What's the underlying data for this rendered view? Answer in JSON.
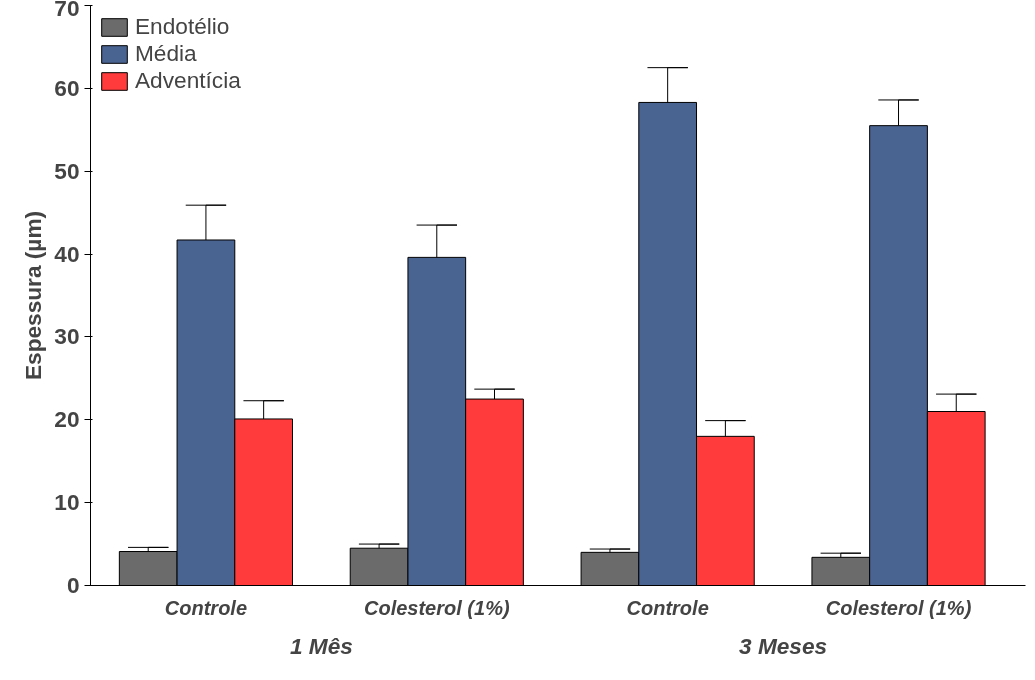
{
  "chart_data": {
    "type": "bar",
    "ylabel": "Espessura (µm)",
    "categories": [
      "Controle",
      "Colesterol (1%)",
      "Controle",
      "Colesterol (1%)"
    ],
    "series": [
      {
        "name": "Endotélio",
        "color": "#6b6b6b",
        "values": [
          4.1,
          4.5,
          4.0,
          3.4
        ],
        "errors": [
          [
            4.1,
            4.6
          ],
          [
            4.5,
            5.0
          ],
          [
            4.0,
            4.4
          ],
          [
            3.4,
            3.9
          ]
        ]
      },
      {
        "name": "Média",
        "color": "#4a6491",
        "values": [
          41.7,
          39.6,
          58.3,
          55.5
        ],
        "errors": [
          [
            41.7,
            45.9
          ],
          [
            39.6,
            43.5
          ],
          [
            58.3,
            62.5
          ],
          [
            55.5,
            58.6
          ]
        ]
      },
      {
        "name": "Adventícia",
        "color": "#ff3b3b",
        "values": [
          20.1,
          22.5,
          18.0,
          21.0
        ],
        "errors": [
          [
            20.1,
            22.3
          ],
          [
            22.5,
            23.7
          ],
          [
            18.0,
            19.9
          ],
          [
            21.0,
            23.1
          ]
        ]
      }
    ],
    "annotations": [
      "1 Mês",
      "3 Meses"
    ],
    "ylim": [
      0,
      70
    ],
    "yticks": [
      0,
      10,
      20,
      30,
      40,
      50,
      60,
      70
    ],
    "grid": false,
    "legend": "top left"
  }
}
